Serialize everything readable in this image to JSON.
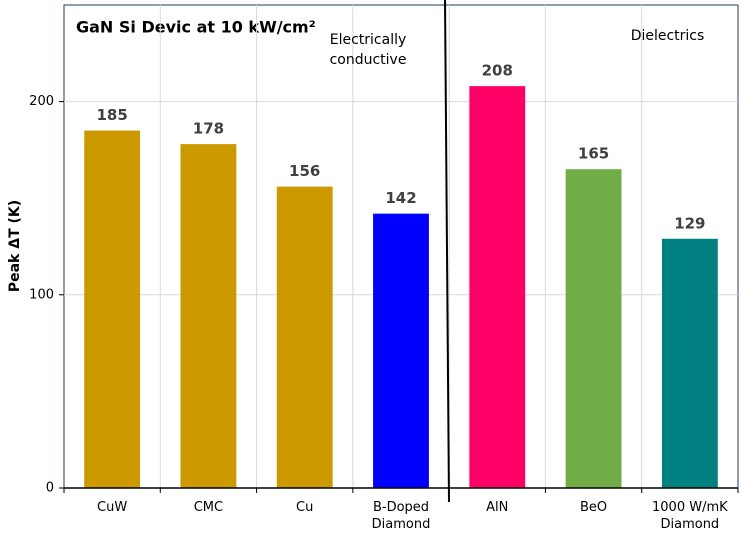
{
  "chart_data": {
    "type": "bar",
    "title": "GaN Si Devic at 10 kW/cm²",
    "y_label": "Peak ΔT (K)",
    "categories": [
      "CuW",
      "CMC",
      "Cu",
      "B-Doped Diamond",
      "AlN",
      "BeO",
      "1000 W/mK Diamond"
    ],
    "values": [
      185,
      178,
      156,
      142,
      208,
      165,
      129
    ],
    "colors": [
      "#cc9900",
      "#cc9900",
      "#cc9900",
      "#0000ff",
      "#ff0066",
      "#70ad47",
      "#008080"
    ],
    "ylim": [
      0,
      250
    ],
    "yticks": [
      0,
      100,
      200
    ],
    "grid": true,
    "annotations": [
      "Electrically conductive",
      "Dielectrics"
    ]
  }
}
